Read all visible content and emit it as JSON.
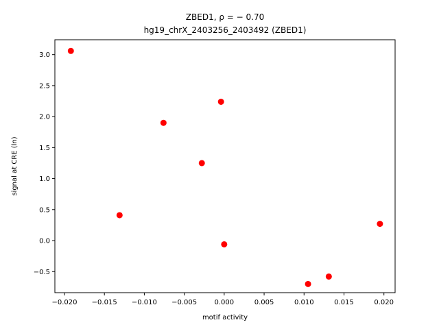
{
  "chart_data": {
    "type": "scatter",
    "title_line1": "ZBED1, ρ = − 0.70",
    "title_line2": "hg19_chrX_2403256_2403492 (ZBED1)",
    "xlabel": "motif activity",
    "ylabel": "signal at CRE (ln)",
    "xlim": [
      -0.0212,
      0.0214
    ],
    "ylim": [
      -0.84,
      3.24
    ],
    "xticks": [
      -0.02,
      -0.015,
      -0.01,
      -0.005,
      0.0,
      0.005,
      0.01,
      0.015,
      0.02
    ],
    "xtick_labels": [
      "−0.020",
      "−0.015",
      "−0.010",
      "−0.005",
      "0.000",
      "0.005",
      "0.010",
      "0.015",
      "0.020"
    ],
    "yticks": [
      -0.5,
      0.0,
      0.5,
      1.0,
      1.5,
      2.0,
      2.5,
      3.0
    ],
    "ytick_labels": [
      "−0.5",
      "0.0",
      "0.5",
      "1.0",
      "1.5",
      "2.0",
      "2.5",
      "3.0"
    ],
    "marker_color": "#ff0000",
    "grid": false,
    "points": [
      {
        "x": -0.0192,
        "y": 3.06
      },
      {
        "x": -0.0004,
        "y": 2.24
      },
      {
        "x": -0.0076,
        "y": 1.9
      },
      {
        "x": -0.0028,
        "y": 1.25
      },
      {
        "x": -0.0131,
        "y": 0.41
      },
      {
        "x": 0.0,
        "y": -0.06
      },
      {
        "x": 0.0195,
        "y": 0.27
      },
      {
        "x": 0.0131,
        "y": -0.58
      },
      {
        "x": 0.0105,
        "y": -0.7
      }
    ]
  }
}
